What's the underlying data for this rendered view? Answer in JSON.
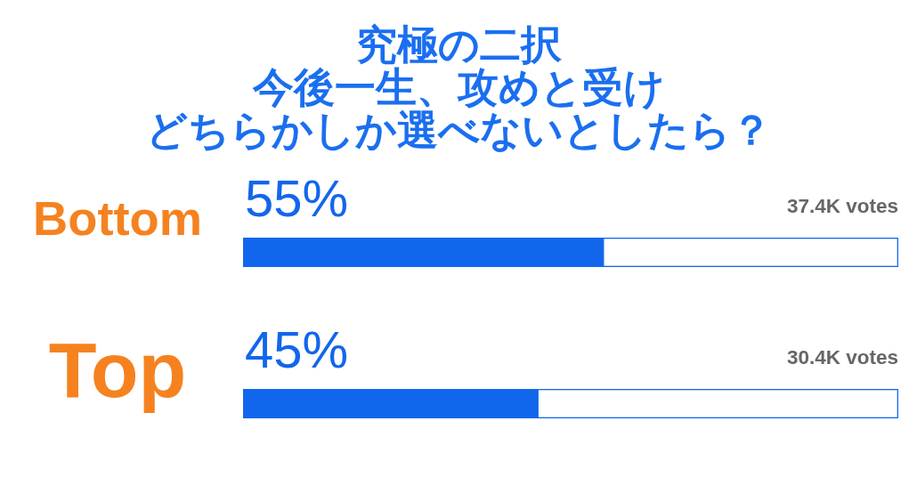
{
  "chart_data": {
    "type": "bar",
    "orientation": "horizontal",
    "title": "究極の二択",
    "subtitle": "今後一生、攻めと受けどちらかしか選べないとしたら？",
    "categories": [
      "Bottom",
      "Top"
    ],
    "values": [
      55,
      45
    ],
    "value_labels": [
      "55%",
      "45%"
    ],
    "color": "#1266ec",
    "xlim": [
      0,
      100
    ],
    "annotations": [
      "37.4K votes",
      "30.4K votes"
    ]
  }
}
